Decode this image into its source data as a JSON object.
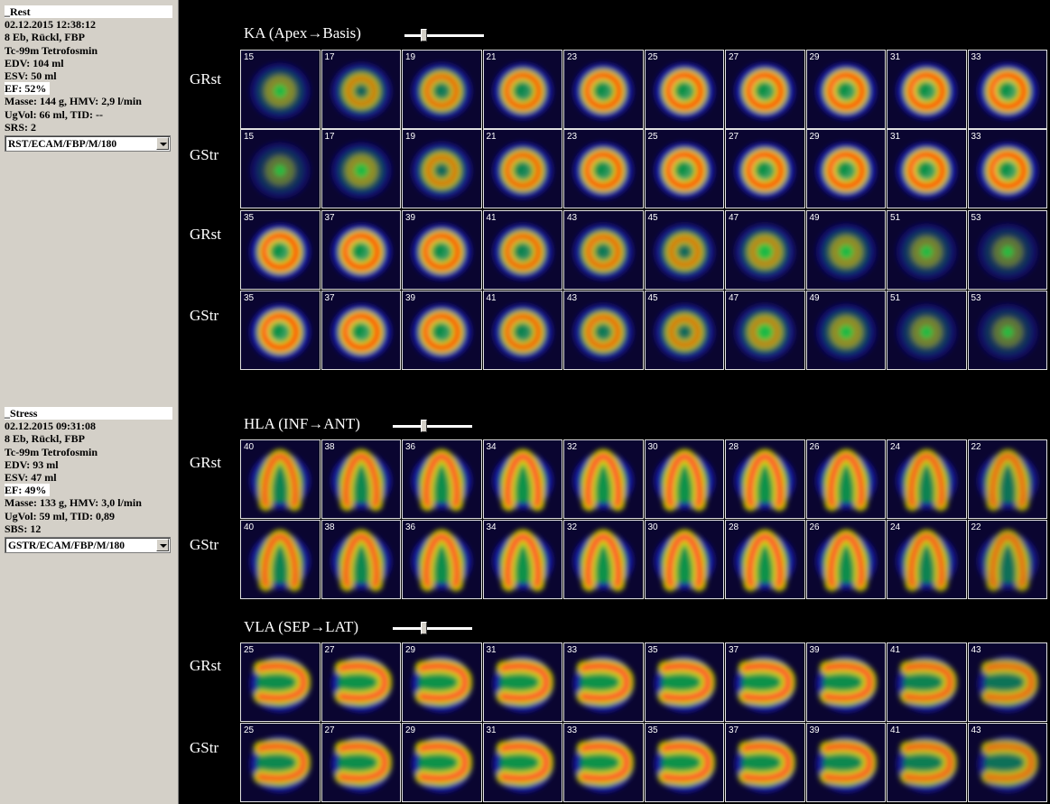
{
  "colors": {
    "background": "#000000",
    "panel": "#d4d0c8"
  },
  "studies": [
    {
      "name": "_Rest",
      "datetime": "02.12.2015 12:38:12",
      "lines": [
        "8 Eb, Rückl, FBP",
        "Tc-99m Tetrofosmin",
        "EDV: 104 ml",
        "ESV: 50 ml"
      ],
      "ef": "EF: 52%",
      "lines2": [
        "Masse: 144 g,  HMV: 2,9 l/min",
        "UgVol: 66 ml,   TID: --",
        "SRS: 2"
      ],
      "select_value": "RST/ECAM/FBP/M/180"
    },
    {
      "name": "_Stress",
      "datetime": "02.12.2015 09:31:08",
      "lines": [
        "8 Eb, Rückl, FBP",
        "Tc-99m Tetrofosmin",
        "EDV: 93 ml",
        "ESV: 47 ml"
      ],
      "ef": "EF: 49%",
      "lines2": [
        "Masse: 133 g,  HMV: 3,0 l/min",
        "UgVol: 59 ml,   TID: 0,89",
        "SBS: 12"
      ],
      "select_value": "GSTR/ECAM/FBP/M/180"
    }
  ],
  "sections": [
    {
      "title": "KA (Apex→Basis)",
      "slider_position": 0.22,
      "shape": "ring",
      "rows": [
        {
          "label": "GRst",
          "slices": [
            "15",
            "17",
            "19",
            "21",
            "23",
            "25",
            "27",
            "29",
            "31",
            "33"
          ],
          "intensity": [
            0.25,
            0.55,
            0.75,
            0.9,
            0.95,
            1,
            1,
            1,
            1,
            1
          ]
        },
        {
          "label": "GStr",
          "slices": [
            "15",
            "17",
            "19",
            "21",
            "23",
            "25",
            "27",
            "29",
            "31",
            "33"
          ],
          "intensity": [
            0.1,
            0.3,
            0.6,
            0.85,
            0.95,
            1,
            1,
            1,
            1,
            1
          ]
        },
        {
          "label": "GRst",
          "slices": [
            "35",
            "37",
            "39",
            "41",
            "43",
            "45",
            "47",
            "49",
            "51",
            "53"
          ],
          "intensity": [
            1,
            1,
            0.95,
            0.85,
            0.75,
            0.6,
            0.45,
            0.3,
            0.18,
            0.1
          ]
        },
        {
          "label": "GStr",
          "slices": [
            "35",
            "37",
            "39",
            "41",
            "43",
            "45",
            "47",
            "49",
            "51",
            "53"
          ],
          "intensity": [
            1,
            1,
            0.95,
            0.85,
            0.75,
            0.6,
            0.45,
            0.3,
            0.18,
            0.1
          ]
        }
      ]
    },
    {
      "title": "HLA (INF→ANT)",
      "slider_position": 0.38,
      "shape": "horseshoe-up",
      "rows": [
        {
          "label": "GRst",
          "slices": [
            "40",
            "38",
            "36",
            "34",
            "32",
            "30",
            "28",
            "26",
            "24",
            "22"
          ],
          "intensity": [
            0.85,
            0.9,
            0.95,
            1,
            1,
            1,
            1,
            0.95,
            0.85,
            0.7
          ]
        },
        {
          "label": "GStr",
          "slices": [
            "40",
            "38",
            "36",
            "34",
            "32",
            "30",
            "28",
            "26",
            "24",
            "22"
          ],
          "intensity": [
            0.85,
            0.9,
            0.95,
            1,
            1,
            1,
            1,
            0.95,
            0.85,
            0.65
          ]
        }
      ]
    },
    {
      "title": "VLA (SEP→LAT)",
      "slider_position": 0.38,
      "shape": "horseshoe-side",
      "rows": [
        {
          "label": "GRst",
          "slices": [
            "25",
            "27",
            "29",
            "31",
            "33",
            "35",
            "37",
            "39",
            "41",
            "43"
          ],
          "intensity": [
            0.95,
            1,
            1,
            1,
            1,
            1,
            1,
            0.95,
            0.85,
            0.7
          ]
        },
        {
          "label": "GStr",
          "slices": [
            "25",
            "27",
            "29",
            "31",
            "33",
            "35",
            "37",
            "39",
            "41",
            "43"
          ],
          "intensity": [
            0.9,
            0.95,
            1,
            1,
            1,
            1,
            0.95,
            0.9,
            0.8,
            0.65
          ]
        }
      ]
    }
  ]
}
